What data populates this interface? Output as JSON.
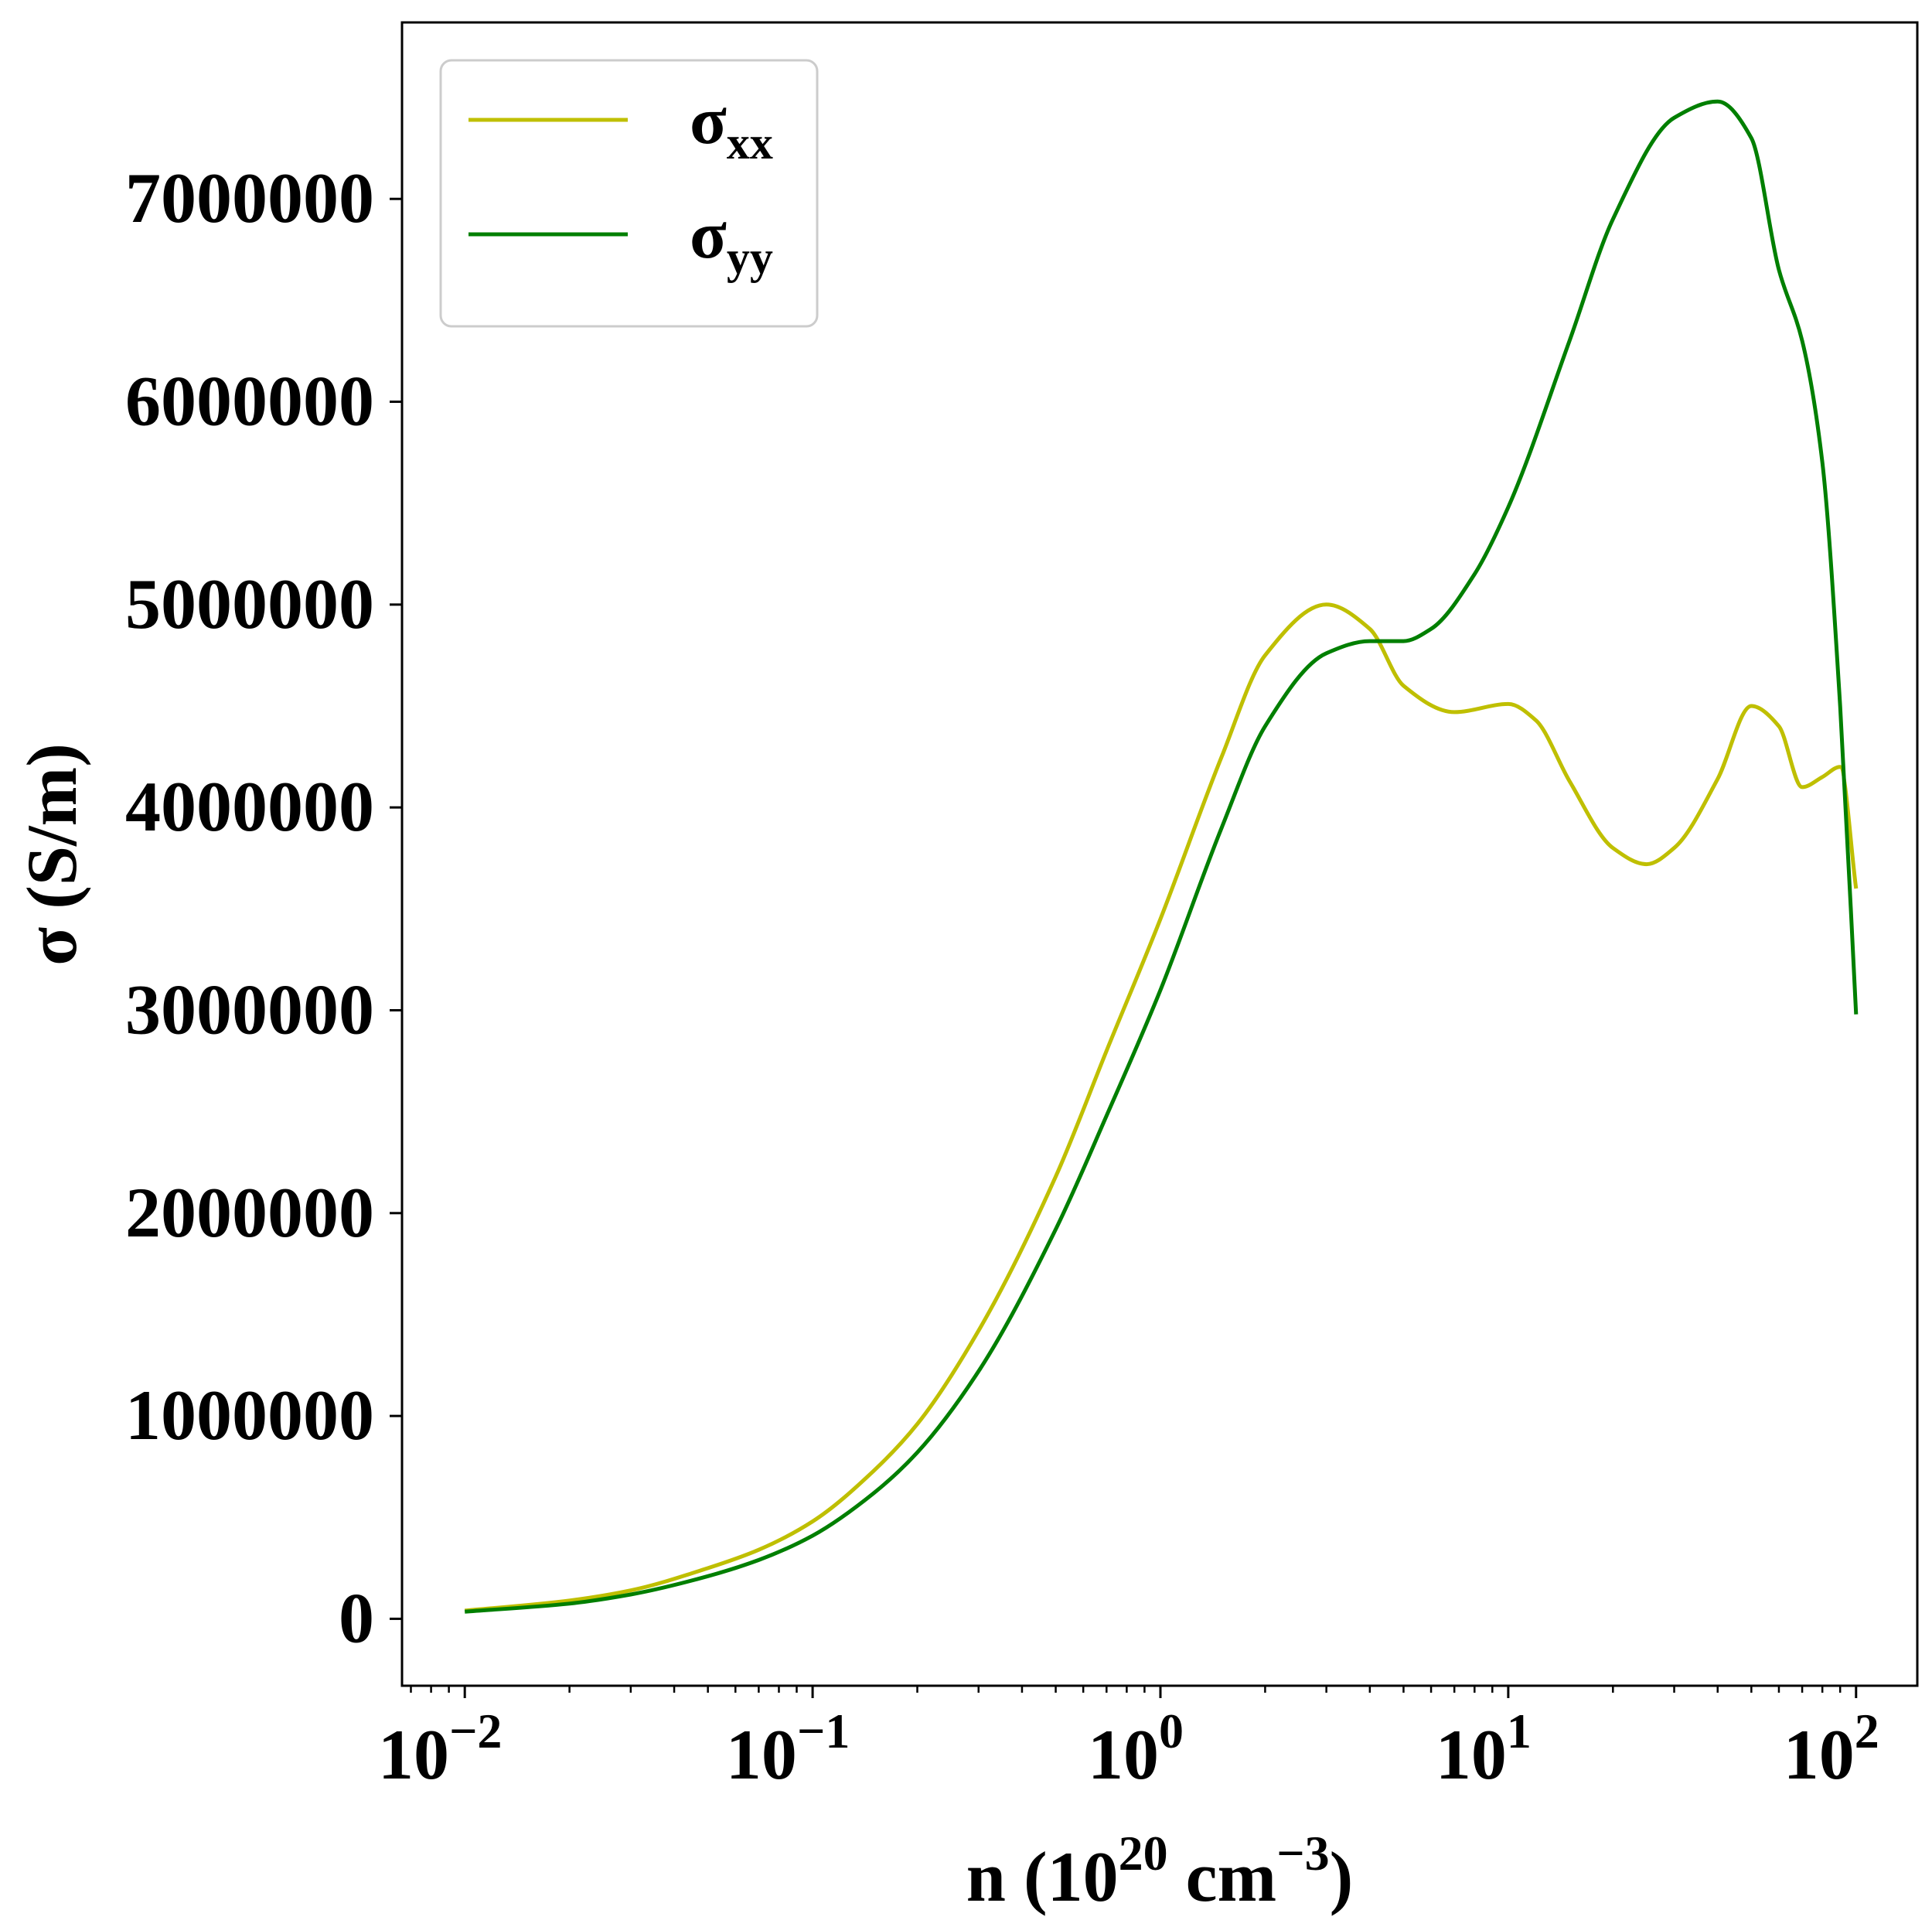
{
  "chart_data": {
    "type": "line",
    "x_scale": "log",
    "xlim": [
      0.0066,
      150
    ],
    "ylim": [
      -330000,
      7870000
    ],
    "xlabel": {
      "base": "n (10",
      "sup1": "20",
      "mid": " cm",
      "sup2": "−3",
      "end": ")"
    },
    "ylabel": "σ (S/m)",
    "x_ticks": [
      {
        "value": 0.01,
        "base": "10",
        "exp": "−2"
      },
      {
        "value": 0.1,
        "base": "10",
        "exp": "−1"
      },
      {
        "value": 1,
        "base": "10",
        "exp": "0"
      },
      {
        "value": 10,
        "base": "10",
        "exp": "1"
      },
      {
        "value": 100,
        "base": "10",
        "exp": "2"
      }
    ],
    "y_ticks": [
      {
        "value": 0,
        "label": "0"
      },
      {
        "value": 1000000,
        "label": "1000000"
      },
      {
        "value": 2000000,
        "label": "2000000"
      },
      {
        "value": 3000000,
        "label": "3000000"
      },
      {
        "value": 4000000,
        "label": "4000000"
      },
      {
        "value": 5000000,
        "label": "5000000"
      },
      {
        "value": 6000000,
        "label": "6000000"
      },
      {
        "value": 7000000,
        "label": "7000000"
      }
    ],
    "legend": {
      "position": "top-left"
    },
    "series": [
      {
        "name": "σxx",
        "label_main": "σ",
        "label_sub": "xx",
        "color": "#bfbf00",
        "x": [
          0.01,
          0.02,
          0.03,
          0.05,
          0.07,
          0.1,
          0.15,
          0.2,
          0.3,
          0.5,
          0.7,
          1,
          1.5,
          2,
          3,
          4,
          5,
          7,
          10,
          12,
          15,
          20,
          25,
          30,
          40,
          50,
          60,
          70,
          80,
          90,
          100
        ],
        "y": [
          40000,
          90000,
          140000,
          250000,
          340000,
          480000,
          730000,
          960000,
          1420000,
          2180000,
          2800000,
          3450000,
          4250000,
          4750000,
          5000000,
          4880000,
          4600000,
          4470000,
          4510000,
          4430000,
          4130000,
          3800000,
          3720000,
          3800000,
          4140000,
          4500000,
          4400000,
          4100000,
          4150000,
          4200000,
          3600000
        ]
      },
      {
        "name": "σyy",
        "label_main": "σ",
        "label_sub": "yy",
        "color": "#007f00",
        "x": [
          0.01,
          0.02,
          0.03,
          0.05,
          0.07,
          0.1,
          0.15,
          0.2,
          0.3,
          0.5,
          0.7,
          1,
          1.5,
          2,
          3,
          4,
          5,
          6,
          8,
          10,
          15,
          20,
          30,
          40,
          50,
          60,
          70,
          80,
          90,
          100
        ],
        "y": [
          35000,
          75000,
          120000,
          210000,
          290000,
          410000,
          620000,
          820000,
          1220000,
          1920000,
          2480000,
          3100000,
          3900000,
          4400000,
          4760000,
          4820000,
          4820000,
          4880000,
          5150000,
          5480000,
          6300000,
          6900000,
          7400000,
          7480000,
          7300000,
          6650000,
          6300000,
          5700000,
          4500000,
          2980000
        ]
      }
    ]
  }
}
